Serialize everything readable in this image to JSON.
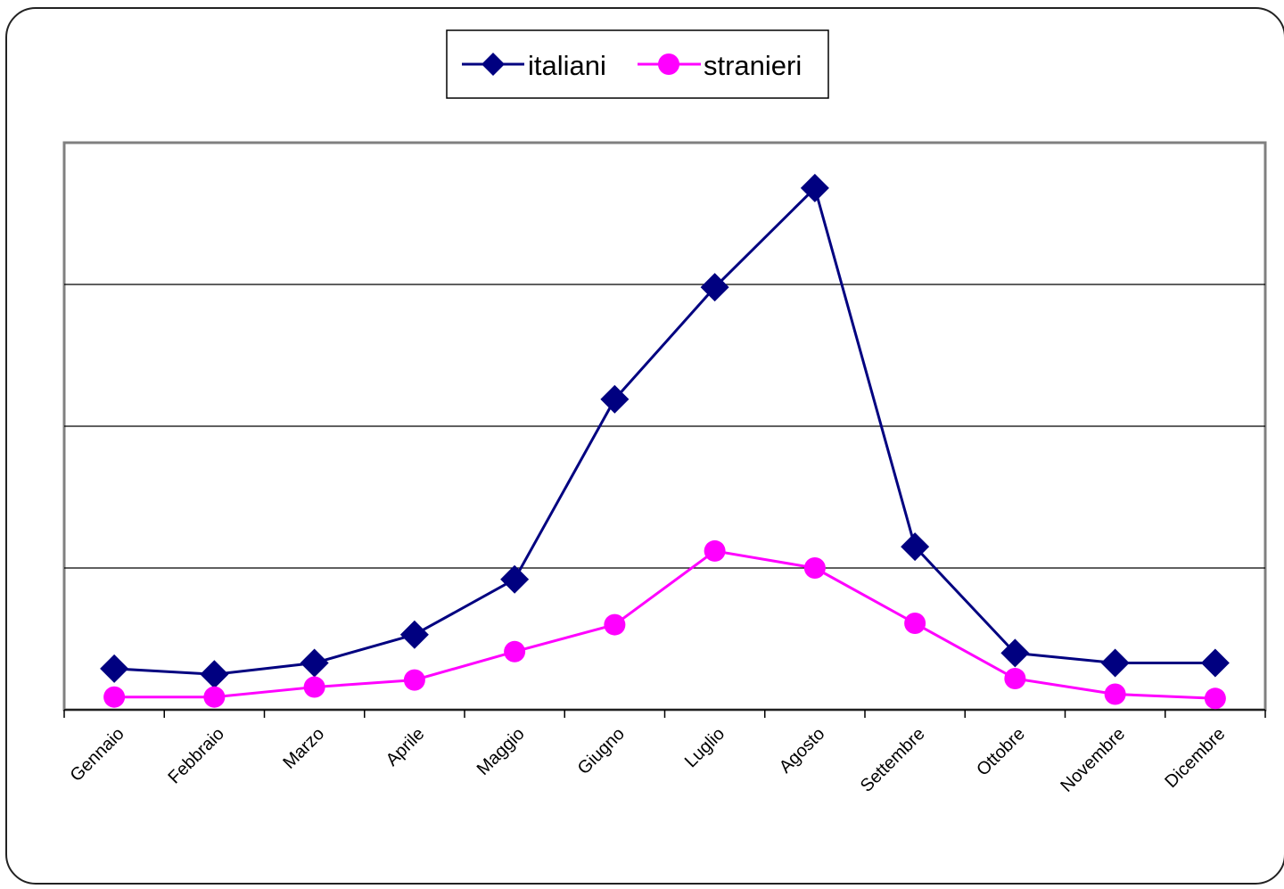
{
  "chart_data": {
    "type": "line",
    "categories": [
      "Gennaio",
      "Febbraio",
      "Marzo",
      "Aprile",
      "Maggio",
      "Giugno",
      "Luglio",
      "Agosto",
      "Settembre",
      "Ottobre",
      "Novembre",
      "Dicembre"
    ],
    "series": [
      {
        "name": "italiani",
        "color": "#000080",
        "marker": "diamond",
        "values": [
          0.29,
          0.25,
          0.33,
          0.53,
          0.92,
          2.19,
          2.98,
          3.68,
          1.15,
          0.4,
          0.33,
          0.33
        ]
      },
      {
        "name": "stranieri",
        "color": "#FF00FF",
        "marker": "circle",
        "values": [
          0.09,
          0.09,
          0.16,
          0.21,
          0.41,
          0.6,
          1.12,
          1.0,
          0.61,
          0.22,
          0.11,
          0.08
        ]
      }
    ],
    "ylim": [
      0,
      4
    ],
    "yticks_labeled": false,
    "gridlines": true,
    "legend_position": "top-center",
    "x_label_rotation": -45
  }
}
